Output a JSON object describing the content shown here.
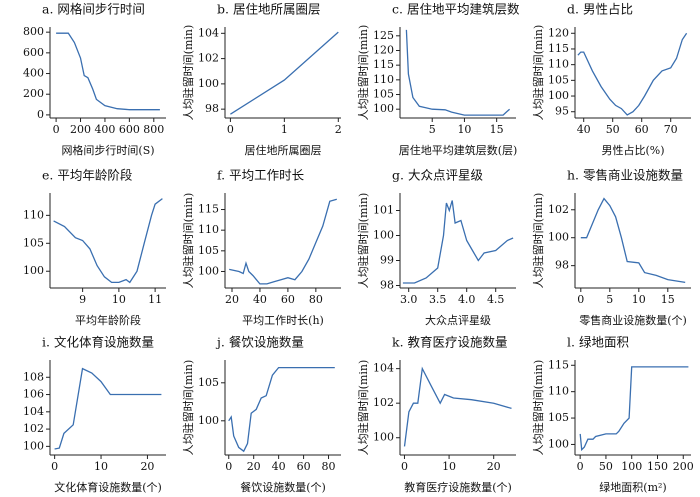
{
  "chart_data": [
    {
      "type": "line",
      "title": "a. 网格间步行时间",
      "xlabel": "网格间步行时间(S)",
      "color": "#3a6fb0",
      "x": [
        0,
        100,
        150,
        200,
        230,
        260,
        300,
        330,
        400,
        500,
        600,
        700,
        850
      ],
      "values": [
        790,
        790,
        700,
        550,
        380,
        360,
        250,
        150,
        90,
        60,
        50,
        50,
        50
      ],
      "xlim": [
        -50,
        900
      ],
      "ylim": [
        -30,
        850
      ],
      "xticks": [
        0,
        200,
        400,
        600,
        800
      ],
      "yticks": [
        0,
        200,
        400,
        600,
        800
      ]
    },
    {
      "type": "line",
      "title": "b. 居住地所属圈层",
      "xlabel": "居住地所属圈层",
      "ylabel": "人均驻留时间(min)",
      "color": "#3a6fb0",
      "x": [
        0,
        1,
        2
      ],
      "values": [
        97.6,
        100.3,
        104.1
      ],
      "xlim": [
        -0.1,
        2.05
      ],
      "ylim": [
        97.3,
        104.5
      ],
      "xticks": [
        0,
        1,
        2
      ],
      "yticks": [
        98,
        100,
        102,
        104
      ]
    },
    {
      "type": "line",
      "title": "c. 居住地平均建筑层数",
      "xlabel": "居住地平均建筑层数(层)",
      "ylabel": "人均驻留时间(min)",
      "color": "#3a6fb0",
      "x": [
        1,
        1.3,
        2,
        3,
        4,
        5,
        7,
        8,
        9,
        10,
        15,
        16,
        16.5,
        17
      ],
      "values": [
        127,
        112,
        104,
        101,
        100.5,
        100,
        99.8,
        99,
        98.5,
        98,
        98,
        98,
        99,
        100
      ],
      "xlim": [
        0,
        18
      ],
      "ylim": [
        97,
        128
      ],
      "xticks": [
        5,
        10,
        15
      ],
      "yticks": [
        100,
        105,
        110,
        115,
        120,
        125
      ]
    },
    {
      "type": "line",
      "title": "d. 男性占比",
      "xlabel": "男性占比(%)",
      "ylabel": "人均驻留时间(min)",
      "color": "#3a6fb0",
      "x": [
        38,
        39,
        40,
        41,
        43,
        46,
        49,
        51,
        53,
        55,
        57,
        59,
        61,
        64,
        67,
        70,
        72,
        74,
        75.5
      ],
      "values": [
        113,
        114,
        114,
        112,
        108,
        103,
        99,
        97,
        96,
        94,
        95,
        97,
        100,
        105,
        108,
        109,
        112,
        118,
        120
      ],
      "xlim": [
        37,
        77
      ],
      "ylim": [
        93,
        122
      ],
      "xticks": [
        40,
        50,
        60,
        70
      ],
      "yticks": [
        95,
        100,
        105,
        110,
        115,
        120
      ]
    },
    {
      "type": "line",
      "title": "e. 平均年龄阶段",
      "xlabel": "平均年龄阶段",
      "color": "#3a6fb0",
      "x": [
        8.2,
        8.5,
        8.8,
        9.0,
        9.2,
        9.4,
        9.6,
        9.8,
        10.0,
        10.2,
        10.3,
        10.5,
        10.7,
        10.9,
        11.0,
        11.2
      ],
      "values": [
        109,
        108,
        106,
        105.5,
        104,
        101,
        99,
        98,
        98,
        98.5,
        98,
        100,
        105,
        110,
        112,
        113
      ],
      "xlim": [
        8.1,
        11.3
      ],
      "ylim": [
        97,
        114
      ],
      "xticks": [
        9,
        10,
        11
      ],
      "yticks": [
        100,
        105,
        110
      ]
    },
    {
      "type": "line",
      "title": "f. 平均工作时长",
      "xlabel": "平均工作时长(h)",
      "ylabel": "人均驻留时间(min)",
      "color": "#3a6fb0",
      "x": [
        18,
        25,
        28,
        30,
        32,
        35,
        40,
        45,
        50,
        55,
        60,
        65,
        70,
        75,
        80,
        85,
        90,
        95
      ],
      "values": [
        100.5,
        100,
        99.5,
        102,
        100,
        99,
        97,
        97,
        97.5,
        98,
        98.5,
        98,
        100,
        103,
        107,
        111,
        117,
        117.5
      ],
      "xlim": [
        15,
        98
      ],
      "ylim": [
        96,
        119
      ],
      "xticks": [
        20,
        40,
        60,
        80
      ],
      "yticks": [
        100,
        105,
        110,
        115
      ]
    },
    {
      "type": "line",
      "title": "g. 大众点评星级",
      "xlabel": "大众点评星级",
      "ylabel": "人均驻留时间(min)",
      "color": "#3a6fb0",
      "x": [
        2.9,
        3.1,
        3.3,
        3.5,
        3.6,
        3.65,
        3.7,
        3.75,
        3.8,
        3.9,
        4.0,
        4.1,
        4.2,
        4.3,
        4.5,
        4.7,
        4.8
      ],
      "values": [
        98.1,
        98.1,
        98.3,
        98.7,
        100,
        101.3,
        101,
        101.4,
        100.5,
        100.6,
        99.8,
        99.4,
        99,
        99.3,
        99.4,
        99.8,
        99.9
      ],
      "xlim": [
        2.85,
        4.85
      ],
      "ylim": [
        97.9,
        101.7
      ],
      "xticks": [
        {
          "value": 3,
          "label": "3.0"
        },
        3.5,
        {
          "value": 4,
          "label": "4.0"
        },
        4.5
      ],
      "yticks": [
        98,
        99,
        100,
        101
      ]
    },
    {
      "type": "line",
      "title": "h. 零售商业设施数量",
      "xlabel": "零售商业设施数量(个)",
      "ylabel": "人均驻留时间(min)",
      "color": "#3a6fb0",
      "x": [
        0,
        1,
        2,
        3,
        4,
        5,
        6,
        7,
        8,
        10,
        11,
        13,
        15,
        18
      ],
      "values": [
        100,
        100,
        101,
        102,
        102.8,
        102.3,
        101.5,
        100,
        98.3,
        98.2,
        97.5,
        97.3,
        97,
        96.8
      ],
      "xlim": [
        -1,
        19
      ],
      "ylim": [
        96.4,
        103.2
      ],
      "xticks": [
        0,
        5,
        10,
        15
      ],
      "yticks": [
        98,
        100,
        102
      ]
    },
    {
      "type": "line",
      "title": "i. 文化体育设施数量",
      "xlabel": "文化体育设施数量(个)",
      "color": "#3a6fb0",
      "x": [
        0,
        1,
        2,
        4,
        6,
        8,
        10,
        12,
        15,
        20,
        23
      ],
      "values": [
        99.7,
        99.8,
        101.5,
        102.5,
        109,
        108.5,
        107.5,
        106,
        106,
        106,
        106
      ],
      "xlim": [
        -1,
        24
      ],
      "ylim": [
        99,
        110
      ],
      "xticks": [
        0,
        10,
        20
      ],
      "yticks": [
        100,
        102,
        104,
        106,
        108
      ]
    },
    {
      "type": "line",
      "title": "j. 餐饮设施数量",
      "xlabel": "餐饮设施数量(个)",
      "ylabel": "人均驻留时间(min)",
      "color": "#3a6fb0",
      "x": [
        0,
        2,
        4,
        8,
        12,
        15,
        18,
        22,
        26,
        30,
        35,
        40,
        50,
        60,
        70,
        85
      ],
      "values": [
        100,
        100.5,
        98,
        96.5,
        96,
        97,
        101,
        101.5,
        103,
        103.3,
        106,
        107,
        107,
        107,
        107,
        107
      ],
      "xlim": [
        -3,
        90
      ],
      "ylim": [
        95.5,
        108
      ],
      "xticks": [
        0,
        20,
        40,
        60,
        80
      ],
      "yticks": [
        100,
        105
      ]
    },
    {
      "type": "line",
      "title": "k. 教育医疗设施数量",
      "xlabel": "教育医疗设施数量(个)",
      "ylabel": "人均驻留时间(min)",
      "color": "#3a6fb0",
      "x": [
        0,
        1,
        2,
        3,
        4,
        6,
        8,
        9,
        11,
        15,
        20,
        24
      ],
      "values": [
        99.5,
        101.5,
        102,
        102,
        104,
        103,
        102,
        102.5,
        102.3,
        102.2,
        102,
        101.7
      ],
      "xlim": [
        -1,
        25
      ],
      "ylim": [
        99,
        104.5
      ],
      "xticks": [
        0,
        10,
        20
      ],
      "yticks": [
        100,
        102,
        104
      ]
    },
    {
      "type": "line",
      "title": "l. 绿地面积",
      "xlabel": "绿地面积(m²)",
      "ylabel": "人均驻留时间(min)",
      "color": "#3a6fb0",
      "x": [
        0,
        3,
        8,
        15,
        25,
        30,
        50,
        70,
        75,
        85,
        95,
        100,
        150,
        210
      ],
      "values": [
        102,
        99,
        99.5,
        101,
        101,
        101.5,
        102,
        102,
        102.5,
        104,
        105,
        114.7,
        114.7,
        114.7
      ],
      "xlim": [
        -10,
        215
      ],
      "ylim": [
        98,
        116
      ],
      "xticks": [
        0,
        50,
        100,
        150,
        200
      ],
      "yticks": [
        100,
        105,
        110,
        115
      ]
    }
  ]
}
